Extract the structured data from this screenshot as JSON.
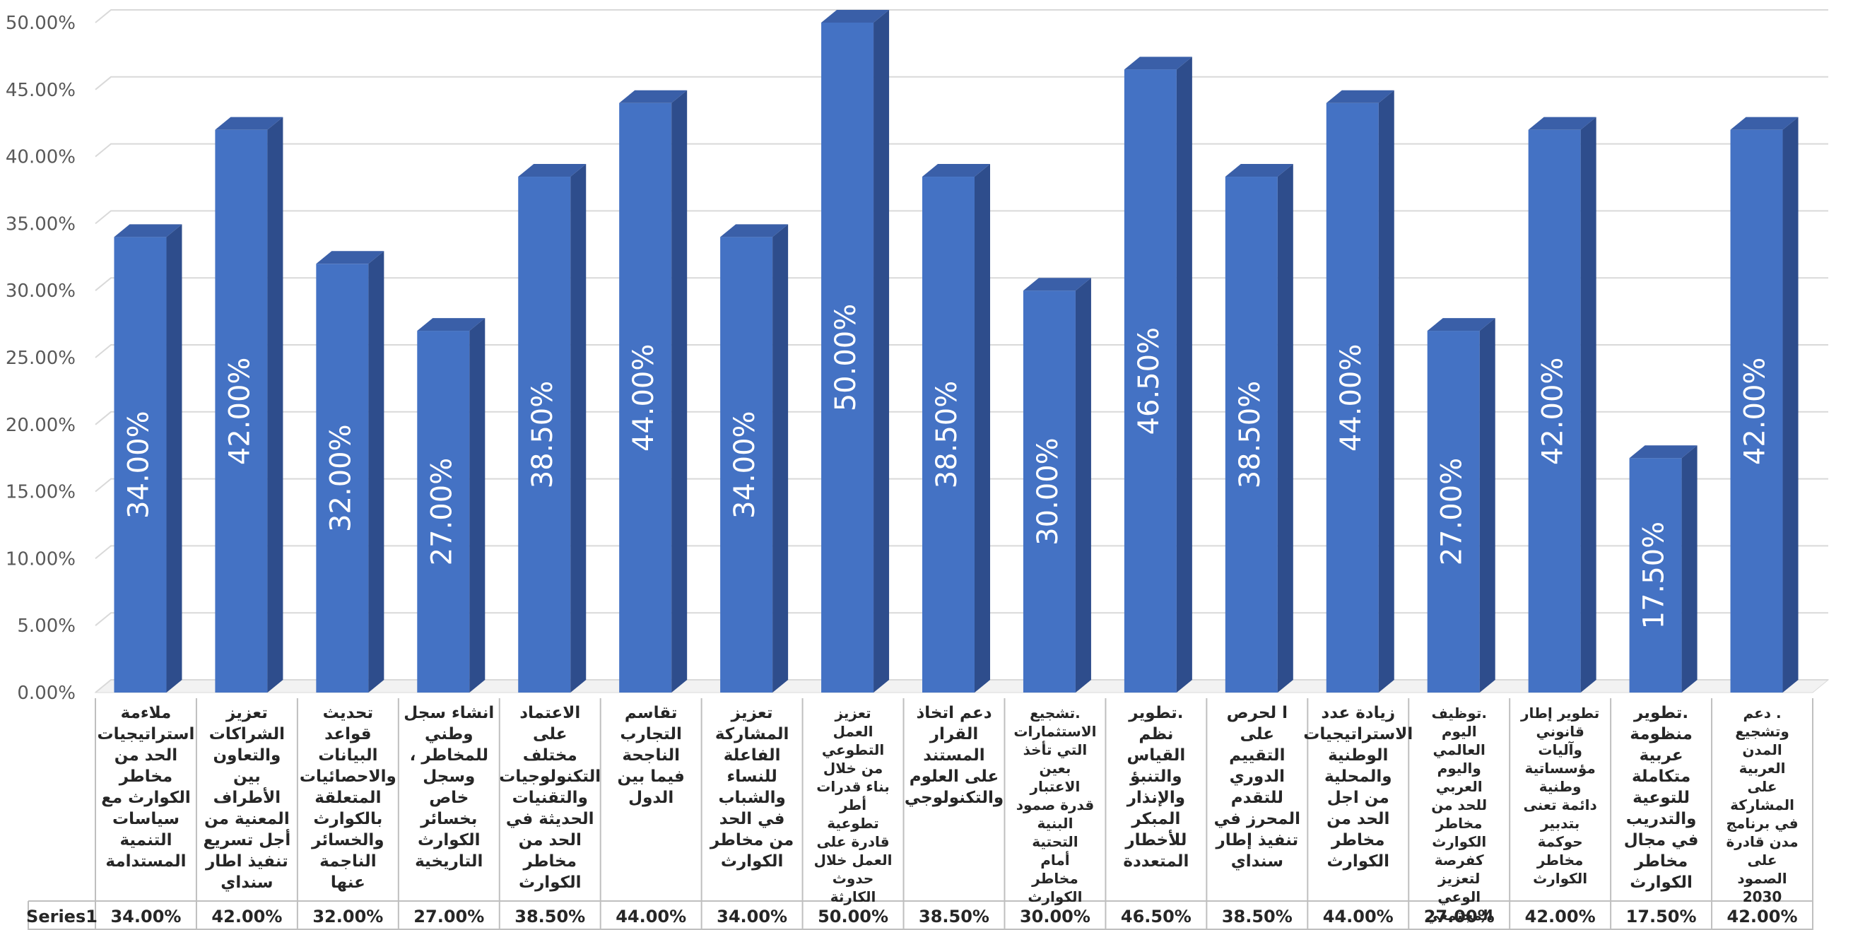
{
  "chart_data": {
    "type": "bar",
    "style": "3d-column",
    "bar_color": "#4472C4",
    "bar_side_color": "#2E4D8C",
    "bar_top_color": "#3A5FA8",
    "grid": true,
    "legend": "none",
    "ylim": [
      0,
      50
    ],
    "y_ticks": [
      "0.00%",
      "5.00%",
      "10.00%",
      "15.00%",
      "20.00%",
      "25.00%",
      "30.00%",
      "35.00%",
      "40.00%",
      "45.00%",
      "50.00%"
    ],
    "series_label": "Series1",
    "categories": [
      "ملاءمة استراتيجيات الحد من مخاطر الكوارث مع سياسات التنمية المستدامة",
      "تعزيز الشراكات والتعاون بين الأطراف المعنية من أجل تسريع تنفيذ اطار سنداي",
      "تحديث قواعد البيانات والاحصائيات المتعلقة بالكوارث والخسائر الناجمة عنها",
      "انشاء سجل وطني للمخاطر ، وسجل خاص بخسائر الكوارث التاريخية",
      "الاعتماد على مختلف التكنولوجيات والتقنيات الحديثة في الحد من مخاطر الكوارث",
      "تقاسم التجارب الناجحة فيما بين الدول",
      "تعزيز المشاركة الفاعلة للنساء والشباب في الحد من مخاطر الكوارث",
      "تعزيز العمل التطوعي من خلال بناء قدرات أطر تطوعية قادرة على العمل خلال حدوث الكارثة",
      "دعم اتخاذ القرار المستند على العلوم والتكنولوجي",
      ".تشجيع الاستثمارات التي تأخذ بعين الاعتبار قدرة صمود البنية التحتية أمام مخاطر الكوارث",
      ".تطوير نظم القياس والتنبؤ والإنذار المبكر للأخطار المتعددة",
      "ا لحرص على التقييم الدوري للتقدم المحرز في تنفيذ إطار سنداي",
      "زيادة عدد الاستراتيجيات الوطنية والمحلية من اجل الحد من مخاطر الكوارث",
      ".توظيف اليوم العالمي واليوم العربي للحد من مخاطر الكوارث كفرصة لتعزيز الوعي المجتمعي",
      "تطوير إطار قانوني وآليات مؤسساتية وطنية دائمة تعنى بتدبير حوكمة مخاطر الكوارث",
      ".تطوير منظومة عربية متكاملة للتوعية والتدريب في مجال مخاطر الكوارث",
      ". دعم وتشجيع المدن العربية على المشاركة في برنامج مدن قادرة على الصمود 2030"
    ],
    "values": [
      34.0,
      42.0,
      32.0,
      27.0,
      38.5,
      44.0,
      34.0,
      50.0,
      38.5,
      30.0,
      46.5,
      38.5,
      44.0,
      27.0,
      42.0,
      17.5,
      42.0
    ],
    "data_labels": [
      "34.00%",
      "42.00%",
      "32.00%",
      "27.00%",
      "38.50%",
      "44.00%",
      "34.00%",
      "50.00%",
      "38.50%",
      "30.00%",
      "46.50%",
      "38.50%",
      "44.00%",
      "27.00%",
      "42.00%",
      "17.50%",
      "42.00%"
    ]
  }
}
